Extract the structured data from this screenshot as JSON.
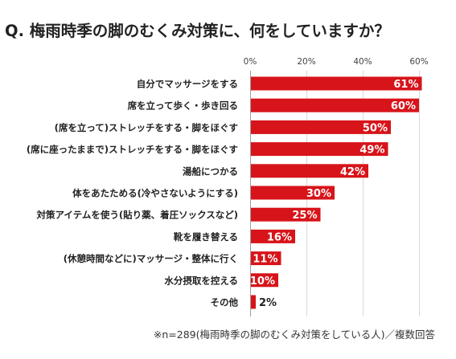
{
  "chart_data": {
    "type": "bar",
    "orientation": "horizontal",
    "title": "Q. 梅雨時季の脚のむくみ対策に、何をしていますか？",
    "categories": [
      "自分でマッサージをする",
      "席を立って歩く・歩き回る",
      "(席を立って)ストレッチをする・脚をほぐす",
      "(席に座ったままで)ストレッチをする・脚をほぐす",
      "湯船につかる",
      "体をあたためる(冷やさないようにする)",
      "対策アイテムを使う(貼り薬、着圧ソックスなど)",
      "靴を履き替える",
      "(休憩時間などに)マッサージ・整体に行く",
      "水分摂取を控える",
      "その他"
    ],
    "values": [
      61,
      60,
      50,
      49,
      42,
      30,
      25,
      16,
      11,
      10,
      2
    ],
    "value_labels": [
      "61%",
      "60%",
      "50%",
      "49%",
      "42%",
      "30%",
      "25%",
      "16%",
      "11%",
      "10%",
      "2%"
    ],
    "xlim": [
      0,
      60
    ],
    "xticks": [
      0,
      20,
      40,
      60
    ],
    "xtick_labels": [
      "0%",
      "20%",
      "40%",
      "60%"
    ],
    "grid": true,
    "legend": "none",
    "bar_color": "#d7141a",
    "grid_color": "#d9d9d9",
    "note": "※n=289(梅雨時季の脚のむくみ対策をしている人)／複数回答"
  }
}
